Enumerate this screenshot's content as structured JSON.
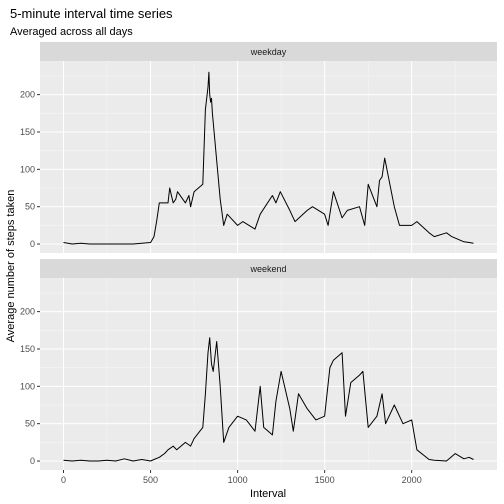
{
  "chart_data": {
    "type": "line",
    "title": "5-minute interval time series",
    "subtitle": "Averaged across all days",
    "xlabel": "Interval",
    "ylabel": "Average number of steps taken",
    "xlim": [
      -135,
      2490
    ],
    "ylim": [
      -12,
      245
    ],
    "xticks": [
      0,
      500,
      1000,
      1500,
      2000
    ],
    "yticks": [
      0,
      50,
      100,
      150,
      200
    ],
    "grid": true,
    "facets": [
      {
        "label": "weekday",
        "x": [
          0,
          50,
          100,
          150,
          200,
          250,
          300,
          350,
          400,
          450,
          500,
          520,
          535,
          550,
          600,
          610,
          620,
          630,
          645,
          655,
          700,
          720,
          730,
          750,
          800,
          815,
          830,
          835,
          840,
          845,
          850,
          855,
          900,
          920,
          940,
          1000,
          1030,
          1100,
          1130,
          1200,
          1220,
          1245,
          1300,
          1330,
          1400,
          1430,
          1500,
          1520,
          1550,
          1600,
          1630,
          1700,
          1730,
          1750,
          1800,
          1815,
          1830,
          1845,
          1900,
          1930,
          2000,
          2030,
          2100,
          2130,
          2200,
          2230,
          2300,
          2330,
          2355
        ],
        "y": [
          2,
          0,
          1,
          0,
          0,
          0,
          0,
          0,
          0,
          1,
          2,
          10,
          30,
          55,
          55,
          75,
          65,
          55,
          60,
          70,
          55,
          65,
          50,
          70,
          80,
          180,
          210,
          230,
          200,
          190,
          195,
          175,
          60,
          25,
          40,
          25,
          30,
          20,
          40,
          65,
          55,
          70,
          45,
          30,
          45,
          50,
          40,
          25,
          70,
          35,
          45,
          50,
          25,
          80,
          50,
          85,
          90,
          115,
          50,
          25,
          25,
          30,
          15,
          10,
          15,
          10,
          3,
          2,
          1
        ]
      },
      {
        "label": "weekend",
        "x": [
          0,
          50,
          100,
          150,
          200,
          250,
          300,
          350,
          400,
          450,
          500,
          520,
          550,
          580,
          600,
          630,
          650,
          700,
          730,
          750,
          800,
          815,
          830,
          840,
          850,
          860,
          880,
          900,
          920,
          950,
          1000,
          1050,
          1100,
          1130,
          1150,
          1200,
          1220,
          1250,
          1300,
          1320,
          1350,
          1400,
          1450,
          1500,
          1530,
          1550,
          1600,
          1620,
          1650,
          1700,
          1720,
          1750,
          1800,
          1830,
          1850,
          1900,
          1950,
          2000,
          2030,
          2100,
          2130,
          2200,
          2250,
          2300,
          2330,
          2355
        ],
        "y": [
          1,
          0,
          1,
          0,
          0,
          1,
          0,
          3,
          0,
          2,
          0,
          2,
          5,
          10,
          15,
          20,
          15,
          25,
          20,
          30,
          45,
          90,
          145,
          165,
          130,
          120,
          160,
          100,
          25,
          45,
          60,
          55,
          40,
          100,
          45,
          35,
          80,
          120,
          70,
          40,
          90,
          70,
          55,
          60,
          125,
          135,
          145,
          60,
          105,
          115,
          120,
          45,
          60,
          90,
          50,
          75,
          50,
          55,
          15,
          2,
          1,
          0,
          10,
          3,
          5,
          2
        ]
      }
    ]
  }
}
